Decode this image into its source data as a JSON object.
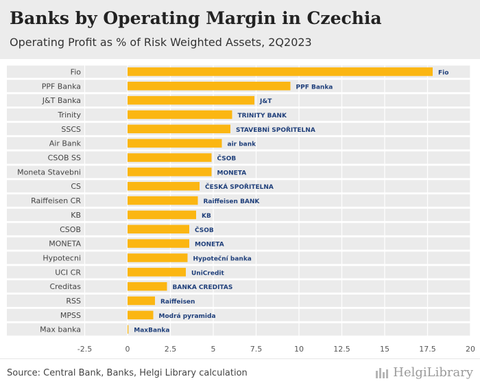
{
  "title": "Banks by Operating Margin in Czechia",
  "subtitle": "Operating Profit as % of Risk Weighted Assets, 2Q2023",
  "source": "Source: Central Bank, Banks, Helgi Library calculation",
  "brand": "HelgiLibrary",
  "colors": {
    "bar": "#FBB612",
    "band": "#ebebeb",
    "grid": "#d9d9d9"
  },
  "chart_data": {
    "type": "bar",
    "orientation": "horizontal",
    "categories": [
      "Fio",
      "PPF Banka",
      "J&T Banka",
      "Trinity",
      "SSCS",
      "Air Bank",
      "CSOB SS",
      "Moneta Stavebni",
      "CS",
      "Raiffeisen CR",
      "KB",
      "CSOB",
      "MONETA",
      "Hypotecni",
      "UCI CR",
      "Creditas",
      "RSS",
      "MPSS",
      "Max banka"
    ],
    "values": [
      17.8,
      9.5,
      7.4,
      6.1,
      6.0,
      5.5,
      4.9,
      4.9,
      4.2,
      4.1,
      4.0,
      3.6,
      3.6,
      3.5,
      3.4,
      2.3,
      1.6,
      1.5,
      0.05
    ],
    "logos": [
      "Fio",
      "PPF Banka",
      "J&T",
      "TRINITY BANK",
      "STAVEBNÍ SPOŘITELNA",
      "air bank",
      "ČSOB",
      "MONETA",
      "ČESKÁ SPOŘITELNA",
      "Raiffeisen BANK",
      "KB",
      "ČSOB",
      "MONETA",
      "Hypoteční banka",
      "UniCredit",
      "BANKA CREDITAS",
      "Raiffeisen",
      "Modrá pyramida",
      "MaxBanka"
    ],
    "xlim": [
      -2.5,
      20
    ],
    "xticks": [
      -2.5,
      0,
      2.5,
      5,
      7.5,
      10,
      12.5,
      15,
      17.5,
      20
    ],
    "xlabel": "",
    "ylabel": "",
    "grid": true
  }
}
